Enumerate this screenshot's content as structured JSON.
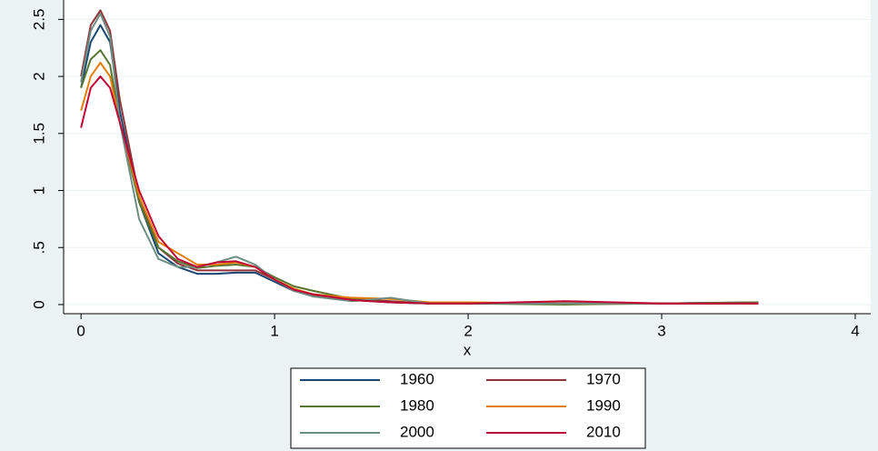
{
  "chart_data": {
    "type": "line",
    "x_label": "x",
    "x": [
      0,
      0.05,
      0.1,
      0.15,
      0.2,
      0.3,
      0.4,
      0.5,
      0.6,
      0.7,
      0.8,
      0.9,
      1.0,
      1.1,
      1.2,
      1.4,
      1.6,
      1.8,
      2.0,
      2.5,
      3.0,
      3.5
    ],
    "series": [
      {
        "name": "1960",
        "color": "#1a476f",
        "values": [
          1.9,
          2.3,
          2.45,
          2.3,
          1.7,
          0.9,
          0.45,
          0.33,
          0.27,
          0.27,
          0.28,
          0.28,
          0.2,
          0.12,
          0.08,
          0.04,
          0.02,
          0.01,
          0.01,
          0.01,
          0.01,
          0.02
        ]
      },
      {
        "name": "1970",
        "color": "#90353b",
        "values": [
          2.0,
          2.45,
          2.58,
          2.4,
          1.8,
          0.95,
          0.5,
          0.36,
          0.3,
          0.3,
          0.3,
          0.3,
          0.22,
          0.13,
          0.08,
          0.05,
          0.03,
          0.01,
          0.01,
          0.01,
          0.01,
          0.01
        ]
      },
      {
        "name": "1980",
        "color": "#55752f",
        "values": [
          1.9,
          2.15,
          2.23,
          2.1,
          1.6,
          0.9,
          0.5,
          0.38,
          0.32,
          0.34,
          0.35,
          0.33,
          0.24,
          0.16,
          0.12,
          0.05,
          0.02,
          0.01,
          0.01,
          0.0,
          0.01,
          0.02
        ]
      },
      {
        "name": "1990",
        "color": "#e37e00",
        "values": [
          1.7,
          2.0,
          2.12,
          2.0,
          1.6,
          0.95,
          0.55,
          0.45,
          0.35,
          0.35,
          0.37,
          0.33,
          0.22,
          0.14,
          0.09,
          0.06,
          0.05,
          0.02,
          0.02,
          0.01,
          0.01,
          0.01
        ]
      },
      {
        "name": "2000",
        "color": "#6e8e84",
        "values": [
          1.95,
          2.4,
          2.55,
          2.35,
          1.6,
          0.75,
          0.4,
          0.33,
          0.33,
          0.37,
          0.42,
          0.35,
          0.22,
          0.12,
          0.07,
          0.03,
          0.06,
          0.01,
          0.01,
          0.01,
          0.01,
          0.01
        ]
      },
      {
        "name": "2010",
        "color": "#c10534",
        "values": [
          1.55,
          1.9,
          2.0,
          1.9,
          1.6,
          1.0,
          0.6,
          0.4,
          0.33,
          0.37,
          0.38,
          0.33,
          0.22,
          0.13,
          0.09,
          0.04,
          0.02,
          0.01,
          0.01,
          0.03,
          0.01,
          0.01
        ]
      }
    ],
    "xlim": [
      -0.09,
      4.08
    ],
    "xticks": [
      0,
      1,
      2,
      3,
      4
    ],
    "ylim": [
      -0.08,
      2.67
    ],
    "yticks": [
      0,
      {
        "value": 0.5,
        "label": ".5"
      },
      1,
      1.5,
      2,
      2.5
    ],
    "grid": true
  }
}
